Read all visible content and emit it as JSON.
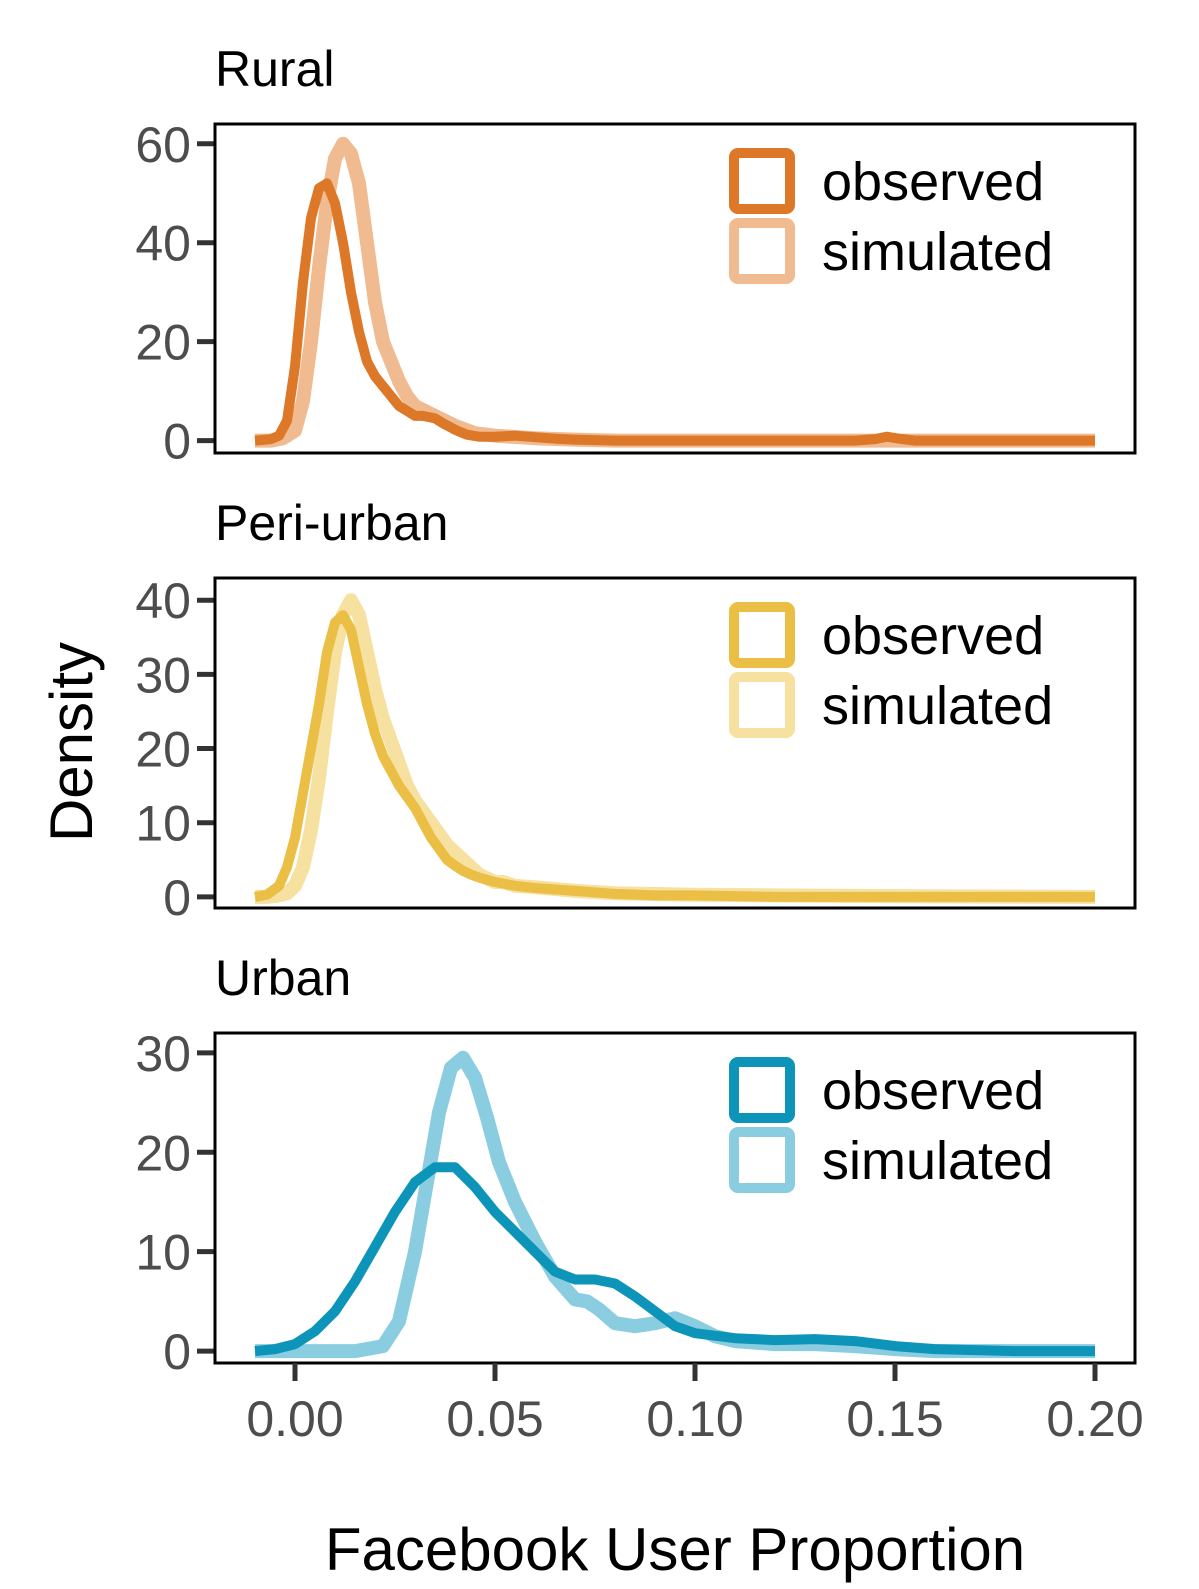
{
  "chart_data": {
    "type": "line",
    "xlabel": "Facebook User Proportion",
    "ylabel": "Density",
    "xlim": [
      -0.02,
      0.21
    ],
    "x_ticks": [
      "0.00",
      "0.05",
      "0.10",
      "0.15",
      "0.20"
    ],
    "x_tick_values": [
      0.0,
      0.05,
      0.1,
      0.15,
      0.2
    ],
    "legend_position": "top-right",
    "panels": [
      {
        "title": "Rural",
        "ylim": [
          -2.5,
          64
        ],
        "y_ticks": [
          "0",
          "20",
          "40",
          "60"
        ],
        "y_tick_values": [
          0,
          20,
          40,
          60
        ],
        "colors": {
          "observed": "#dd7828",
          "simulated": "#f0bb91"
        },
        "series": [
          {
            "name": "simulated",
            "x": [
              -0.01,
              -0.006,
              -0.003,
              0.0,
              0.002,
              0.004,
              0.006,
              0.008,
              0.01,
              0.012,
              0.014,
              0.016,
              0.018,
              0.02,
              0.022,
              0.024,
              0.026,
              0.028,
              0.03,
              0.035,
              0.04,
              0.045,
              0.05,
              0.06,
              0.07,
              0.08,
              0.1,
              0.12,
              0.14,
              0.16,
              0.18,
              0.2
            ],
            "y": [
              0,
              0,
              0.5,
              2,
              8,
              20,
              35,
              48,
              57,
              60,
              58,
              52,
              40,
              28,
              20,
              16,
              12,
              9,
              7,
              5,
              3,
              1.5,
              1,
              0.5,
              0.2,
              0,
              0,
              0,
              0,
              0,
              0,
              0
            ]
          },
          {
            "name": "observed",
            "x": [
              -0.01,
              -0.006,
              -0.004,
              -0.002,
              0.0,
              0.002,
              0.004,
              0.006,
              0.008,
              0.01,
              0.012,
              0.014,
              0.016,
              0.018,
              0.02,
              0.022,
              0.024,
              0.026,
              0.028,
              0.03,
              0.032,
              0.035,
              0.037,
              0.04,
              0.043,
              0.046,
              0.05,
              0.055,
              0.06,
              0.065,
              0.07,
              0.08,
              0.1,
              0.12,
              0.14,
              0.145,
              0.148,
              0.151,
              0.155,
              0.17,
              0.2
            ],
            "y": [
              0,
              0.3,
              1,
              4,
              15,
              32,
              45,
              51,
              52,
              48,
              40,
              30,
              22,
              16,
              13,
              11,
              9,
              7,
              6,
              5,
              5,
              4.5,
              3.5,
              2.2,
              1.2,
              0.8,
              0.8,
              1,
              0.7,
              0.4,
              0.2,
              0,
              0,
              0,
              0,
              0.3,
              0.8,
              0.4,
              0,
              0,
              0
            ]
          }
        ]
      },
      {
        "title": "Peri-urban",
        "ylim": [
          -1.5,
          43
        ],
        "y_ticks": [
          "0",
          "10",
          "20",
          "30",
          "40"
        ],
        "y_tick_values": [
          0,
          10,
          20,
          30,
          40
        ],
        "colors": {
          "observed": "#ebbe46",
          "simulated": "#f6e1a0"
        },
        "series": [
          {
            "name": "simulated",
            "x": [
              -0.01,
              -0.007,
              -0.004,
              -0.002,
              0.0,
              0.002,
              0.004,
              0.006,
              0.008,
              0.01,
              0.012,
              0.014,
              0.016,
              0.018,
              0.02,
              0.022,
              0.024,
              0.026,
              0.028,
              0.03,
              0.032,
              0.034,
              0.036,
              0.038,
              0.04,
              0.042,
              0.044,
              0.046,
              0.048,
              0.05,
              0.052,
              0.055,
              0.06,
              0.07,
              0.08,
              0.1,
              0.12,
              0.15,
              0.2
            ],
            "y": [
              0,
              0,
              0.2,
              0.5,
              1.5,
              4,
              9,
              16,
              25,
              33,
              38,
              40,
              38,
              33,
              28,
              24,
              21,
              18,
              15,
              13,
              11.5,
              10,
              8.5,
              7,
              6,
              5,
              4,
              3,
              2.5,
              2,
              2,
              1.5,
              1.3,
              0.8,
              0.5,
              0.3,
              0.2,
              0.1,
              0
            ]
          },
          {
            "name": "observed",
            "x": [
              -0.01,
              -0.007,
              -0.004,
              -0.002,
              0.0,
              0.002,
              0.004,
              0.006,
              0.008,
              0.01,
              0.012,
              0.014,
              0.016,
              0.018,
              0.02,
              0.022,
              0.024,
              0.026,
              0.028,
              0.03,
              0.032,
              0.034,
              0.036,
              0.038,
              0.04,
              0.042,
              0.044,
              0.046,
              0.05,
              0.055,
              0.06,
              0.07,
              0.08,
              0.09,
              0.1,
              0.12,
              0.14,
              0.16,
              0.18,
              0.2
            ],
            "y": [
              0,
              0.3,
              1.5,
              4,
              8,
              14,
              20,
              26,
              33,
              37,
              38,
              36,
              31,
              26,
              22,
              19,
              17,
              15,
              13.5,
              12,
              10,
              8,
              6.5,
              5,
              4.2,
              3.5,
              3,
              2.6,
              2,
              1.5,
              1.2,
              0.8,
              0.4,
              0.2,
              0.2,
              0,
              0,
              0,
              0,
              0
            ]
          }
        ]
      },
      {
        "title": "Urban",
        "ylim": [
          -1.2,
          32
        ],
        "y_ticks": [
          "0",
          "10",
          "20",
          "30"
        ],
        "y_tick_values": [
          0,
          10,
          20,
          30
        ],
        "colors": {
          "observed": "#0c94b9",
          "simulated": "#8acde0"
        },
        "series": [
          {
            "name": "simulated",
            "x": [
              -0.01,
              0.0,
              0.015,
              0.022,
              0.026,
              0.03,
              0.033,
              0.036,
              0.039,
              0.042,
              0.045,
              0.048,
              0.051,
              0.055,
              0.06,
              0.065,
              0.07,
              0.073,
              0.076,
              0.08,
              0.085,
              0.09,
              0.095,
              0.1,
              0.105,
              0.11,
              0.12,
              0.13,
              0.14,
              0.15,
              0.16,
              0.2
            ],
            "y": [
              0,
              0,
              0,
              0.5,
              3,
              10,
              17,
              24,
              28.5,
              29.5,
              27.5,
              23.5,
              19,
              15,
              11,
              7.5,
              5.2,
              5,
              4.2,
              2.8,
              2.5,
              2.8,
              3.3,
              2.5,
              1.5,
              1,
              0.7,
              0.7,
              0.5,
              0.2,
              0,
              0
            ]
          },
          {
            "name": "observed",
            "x": [
              -0.01,
              -0.005,
              0.0,
              0.005,
              0.01,
              0.015,
              0.02,
              0.025,
              0.03,
              0.035,
              0.04,
              0.045,
              0.05,
              0.055,
              0.06,
              0.065,
              0.07,
              0.075,
              0.08,
              0.085,
              0.09,
              0.095,
              0.1,
              0.11,
              0.12,
              0.13,
              0.14,
              0.15,
              0.16,
              0.18,
              0.2
            ],
            "y": [
              0,
              0.2,
              0.7,
              2,
              4,
              7,
              10.5,
              14,
              17,
              18.5,
              18.5,
              16.5,
              14,
              12,
              10,
              8,
              7.2,
              7.2,
              6.8,
              5.5,
              4,
              2.5,
              1.8,
              1.3,
              1.1,
              1.2,
              1,
              0.5,
              0.2,
              0,
              0
            ]
          }
        ]
      }
    ]
  }
}
